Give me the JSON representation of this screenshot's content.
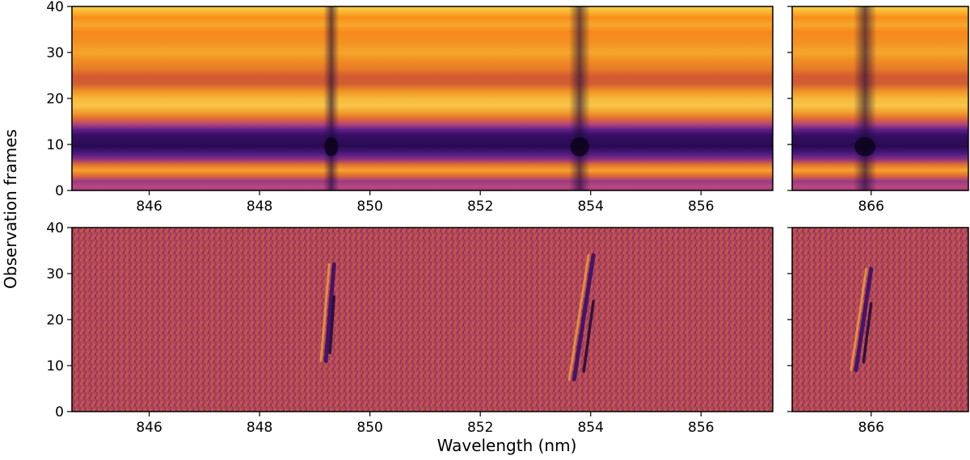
{
  "figure": {
    "xlabel": "Wavelength (nm)",
    "ylabel": "Observation frames"
  },
  "chart_data": [
    {
      "type": "heatmap",
      "panel": "top-left",
      "colormap": "inferno",
      "xlim": [
        844.6,
        857.3
      ],
      "ylim": [
        0,
        40
      ],
      "xticks": [
        846,
        848,
        850,
        852,
        854,
        856
      ],
      "yticks": [
        0,
        10,
        20,
        30,
        40
      ],
      "absorption_lines_nm": [
        849.3,
        853.8
      ],
      "dark_frames": [
        8,
        9,
        10,
        11
      ]
    },
    {
      "type": "heatmap",
      "panel": "top-right",
      "colormap": "inferno",
      "xlim": [
        864.7,
        867.6
      ],
      "ylim": [
        0,
        40
      ],
      "xticks": [
        866
      ],
      "yticks": [
        0,
        10,
        20,
        30,
        40
      ],
      "absorption_lines_nm": [
        865.9
      ],
      "dark_frames": [
        8,
        9,
        10,
        11
      ]
    },
    {
      "type": "heatmap",
      "panel": "bottom-left",
      "colormap": "inferno",
      "xlim": [
        844.6,
        857.3
      ],
      "ylim": [
        0,
        40
      ],
      "xticks": [
        846,
        848,
        850,
        852,
        854,
        856
      ],
      "yticks": [
        0,
        10,
        20,
        30,
        40
      ],
      "residual_features": [
        {
          "x_start": 849.35,
          "x_end": 849.2,
          "y_start": 32,
          "y_end": 11
        },
        {
          "x_start": 854.05,
          "x_end": 853.7,
          "y_start": 34,
          "y_end": 7
        }
      ]
    },
    {
      "type": "heatmap",
      "panel": "bottom-right",
      "colormap": "inferno",
      "xlim": [
        864.7,
        867.6
      ],
      "ylim": [
        0,
        40
      ],
      "xticks": [
        866
      ],
      "yticks": [
        0,
        10,
        20,
        30,
        40
      ],
      "residual_features": [
        {
          "x_start": 866.0,
          "x_end": 865.75,
          "y_start": 31,
          "y_end": 9
        }
      ]
    }
  ]
}
